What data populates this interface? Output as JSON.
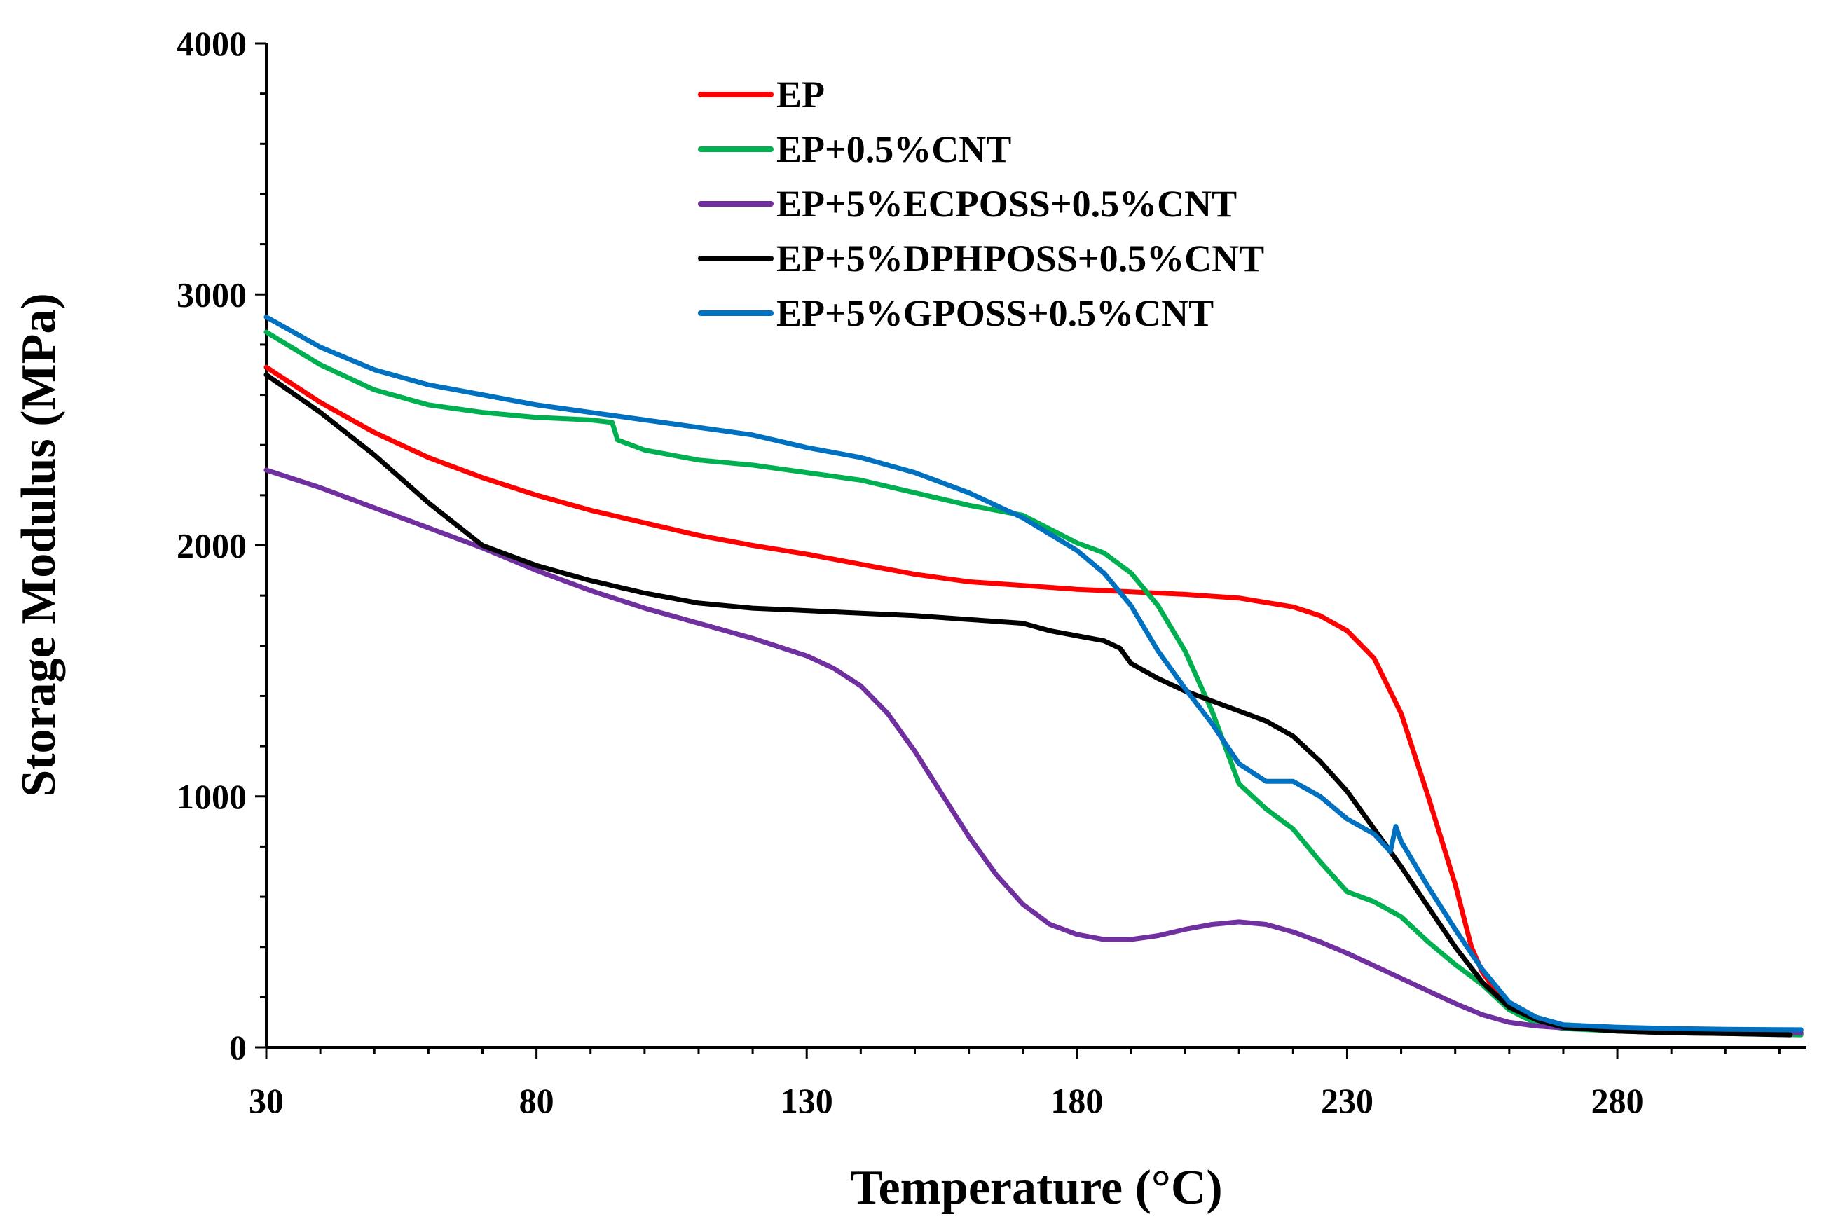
{
  "chart_data": {
    "type": "line",
    "title": "",
    "xlabel": "Temperature (°C)",
    "ylabel": "Storage Modulus (MPa)",
    "xlim": [
      30,
      315
    ],
    "ylim": [
      0,
      4000
    ],
    "x_ticks": [
      "30",
      "80",
      "130",
      "180",
      "230",
      "280"
    ],
    "y_ticks": [
      "0",
      "1000",
      "2000",
      "3000",
      "4000"
    ],
    "grid": false,
    "legend_position": "top-center",
    "series": [
      {
        "name": "EP",
        "color": "#ff0000",
        "x": [
          30,
          40,
          50,
          60,
          70,
          80,
          90,
          100,
          110,
          120,
          130,
          140,
          150,
          160,
          170,
          180,
          190,
          200,
          210,
          220,
          225,
          230,
          235,
          240,
          245,
          250,
          253,
          255,
          258,
          260,
          265,
          270,
          280,
          290,
          300,
          314
        ],
        "y": [
          2710,
          2570,
          2450,
          2350,
          2270,
          2200,
          2140,
          2090,
          2040,
          2000,
          1965,
          1925,
          1885,
          1855,
          1840,
          1825,
          1815,
          1805,
          1790,
          1755,
          1720,
          1660,
          1550,
          1330,
          1000,
          650,
          400,
          300,
          210,
          160,
          105,
          80,
          65,
          58,
          55,
          52
        ]
      },
      {
        "name": "EP+0.5%CNT",
        "color": "#00b050",
        "x": [
          30,
          40,
          50,
          60,
          70,
          80,
          90,
          94,
          95,
          100,
          110,
          120,
          130,
          140,
          150,
          160,
          170,
          180,
          185,
          190,
          195,
          200,
          205,
          210,
          215,
          220,
          225,
          230,
          235,
          240,
          245,
          250,
          255,
          260,
          265,
          270,
          280,
          290,
          300,
          314
        ],
        "y": [
          2850,
          2720,
          2620,
          2560,
          2530,
          2510,
          2500,
          2490,
          2420,
          2380,
          2340,
          2320,
          2290,
          2260,
          2210,
          2160,
          2120,
          2010,
          1970,
          1890,
          1760,
          1580,
          1340,
          1050,
          950,
          870,
          740,
          620,
          580,
          520,
          420,
          330,
          250,
          150,
          95,
          75,
          65,
          60,
          55,
          50
        ]
      },
      {
        "name": "EP+5%ECPOSS+0.5%CNT",
        "color": "#7030a0",
        "x": [
          30,
          40,
          50,
          60,
          70,
          80,
          90,
          100,
          110,
          120,
          130,
          135,
          140,
          145,
          150,
          155,
          160,
          165,
          170,
          175,
          180,
          185,
          190,
          195,
          200,
          205,
          210,
          215,
          220,
          225,
          230,
          235,
          240,
          245,
          250,
          255,
          260,
          265,
          270,
          280,
          290,
          300,
          314
        ],
        "y": [
          2300,
          2230,
          2150,
          2070,
          1990,
          1900,
          1820,
          1750,
          1690,
          1630,
          1560,
          1510,
          1440,
          1330,
          1180,
          1010,
          840,
          690,
          570,
          490,
          450,
          430,
          430,
          445,
          470,
          490,
          500,
          490,
          460,
          420,
          375,
          325,
          275,
          225,
          175,
          130,
          100,
          85,
          78,
          70,
          65,
          62,
          58
        ]
      },
      {
        "name": "EP+5%DPHPOSS+0.5%CNT",
        "color": "#000000",
        "x": [
          30,
          40,
          50,
          60,
          70,
          80,
          90,
          100,
          110,
          120,
          130,
          140,
          150,
          160,
          170,
          175,
          180,
          185,
          188,
          190,
          195,
          200,
          205,
          210,
          215,
          220,
          225,
          230,
          235,
          240,
          245,
          250,
          255,
          260,
          265,
          270,
          280,
          290,
          300,
          312
        ],
        "y": [
          2680,
          2530,
          2360,
          2170,
          2000,
          1920,
          1860,
          1810,
          1770,
          1750,
          1740,
          1730,
          1720,
          1705,
          1690,
          1660,
          1640,
          1620,
          1590,
          1530,
          1470,
          1420,
          1380,
          1340,
          1300,
          1240,
          1140,
          1020,
          870,
          720,
          560,
          400,
          260,
          160,
          110,
          80,
          65,
          58,
          55,
          50
        ]
      },
      {
        "name": "EP+5%GPOSS+0.5%CNT",
        "color": "#0070c0",
        "x": [
          30,
          40,
          50,
          60,
          70,
          80,
          90,
          100,
          110,
          120,
          130,
          140,
          150,
          160,
          170,
          180,
          185,
          190,
          195,
          200,
          205,
          210,
          215,
          220,
          225,
          230,
          235,
          238,
          239,
          240,
          245,
          250,
          255,
          260,
          265,
          270,
          280,
          290,
          300,
          314
        ],
        "y": [
          2910,
          2790,
          2700,
          2640,
          2600,
          2560,
          2530,
          2500,
          2470,
          2440,
          2390,
          2350,
          2290,
          2210,
          2110,
          1980,
          1890,
          1760,
          1580,
          1430,
          1290,
          1130,
          1060,
          1060,
          1000,
          910,
          850,
          780,
          880,
          820,
          640,
          470,
          310,
          180,
          120,
          90,
          80,
          75,
          72,
          70
        ]
      }
    ]
  }
}
